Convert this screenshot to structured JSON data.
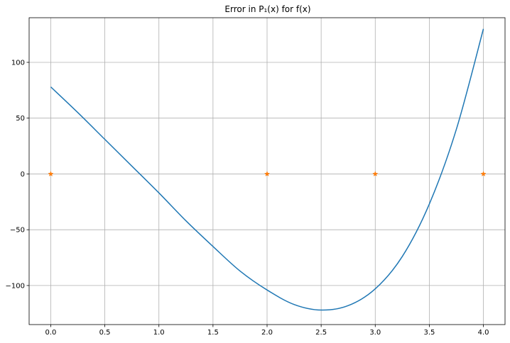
{
  "chart_data": {
    "type": "line",
    "title": "Error in P₁(x) for f(x)",
    "xlabel": "",
    "ylabel": "",
    "xlim": [
      -0.2,
      4.2
    ],
    "ylim": [
      -135,
      140
    ],
    "grid": true,
    "x_ticks": [
      0.0,
      0.5,
      1.0,
      1.5,
      2.0,
      2.5,
      3.0,
      3.5,
      4.0
    ],
    "x_tick_labels": [
      "0.0",
      "0.5",
      "1.0",
      "1.5",
      "2.0",
      "2.5",
      "3.0",
      "3.5",
      "4.0"
    ],
    "y_ticks": [
      -100,
      -50,
      0,
      50,
      100
    ],
    "y_tick_labels": [
      "−100",
      "−50",
      "0",
      "50",
      "100"
    ],
    "series": [
      {
        "color": "#1f77b4",
        "style": "line",
        "x": [
          0.0,
          0.25,
          0.5,
          0.75,
          1.0,
          1.25,
          1.5,
          1.75,
          2.0,
          2.25,
          2.5,
          2.75,
          3.0,
          3.25,
          3.5,
          3.75,
          4.0
        ],
        "values": [
          78,
          55,
          31,
          7,
          -17,
          -42,
          -65,
          -87,
          -104,
          -117,
          -122,
          -118,
          -103,
          -74,
          -27,
          40,
          130
        ]
      },
      {
        "color": "#ff7f0e",
        "style": "markers",
        "marker": "star",
        "x": [
          0.0,
          2.0,
          3.0,
          4.0
        ],
        "values": [
          0,
          0,
          0,
          0
        ]
      }
    ]
  }
}
